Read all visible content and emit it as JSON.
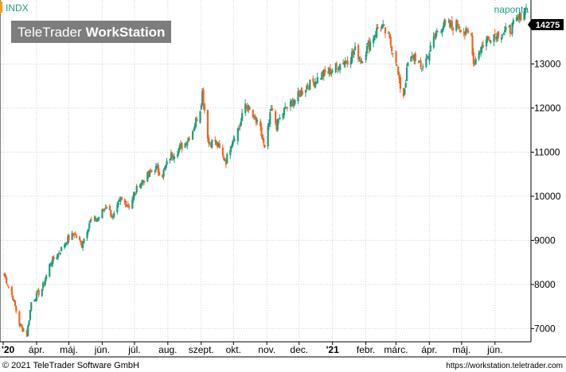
{
  "header": {
    "symbol": "INDX",
    "interval": "naponta",
    "watermark_prefix": "TeleTrader",
    "watermark_product": "WorkStation",
    "last_price_label": "14275"
  },
  "footer": {
    "copyright": "© 2021 TeleTrader Software GmbH",
    "url": "https://workstation.teletrader.com"
  },
  "colors": {
    "up": "#1a9e7d",
    "down": "#f0651e",
    "symbol_accent": "#f0a020",
    "interval_text": "#1a9e7d",
    "grid": "#cfcfcf",
    "axis": "#000000",
    "price_box_bg": "#000000",
    "price_box_text": "#ffffff"
  },
  "chart_data": {
    "type": "candlestick",
    "series_name": "INDX",
    "y_axis": {
      "position": "right",
      "ticks": [
        7000,
        8000,
        9000,
        10000,
        11000,
        12000,
        13000
      ],
      "ylim": [
        6700,
        14450
      ]
    },
    "x_axis": {
      "tick_labels": [
        "'20",
        "ápr.",
        "máj.",
        "jún.",
        "júl.",
        "aug.",
        "szept.",
        "okt.",
        "nov.",
        "dec.",
        "'21",
        "febr.",
        "márc.",
        "ápr.",
        "máj.",
        "jún."
      ],
      "tick_dates": [
        "2020-03-01",
        "2020-04-01",
        "2020-05-01",
        "2020-06-01",
        "2020-07-01",
        "2020-08-01",
        "2020-09-01",
        "2020-10-01",
        "2020-11-01",
        "2020-12-01",
        "2021-01-01",
        "2021-02-01",
        "2021-03-01",
        "2021-04-01",
        "2021-05-01",
        "2021-06-01"
      ],
      "bold_labels": [
        "'20",
        "'21"
      ],
      "range": [
        "2020-03-01",
        "2021-06-30"
      ]
    },
    "grid": true,
    "last_value": 14275,
    "price_path": [
      [
        "2020-03-02",
        8200
      ],
      [
        "2020-03-10",
        7700
      ],
      [
        "2020-03-16",
        7100
      ],
      [
        "2020-03-23",
        6850
      ],
      [
        "2020-03-27",
        7600
      ],
      [
        "2020-04-06",
        7900
      ],
      [
        "2020-04-14",
        8500
      ],
      [
        "2020-04-21",
        8700
      ],
      [
        "2020-04-29",
        9000
      ],
      [
        "2020-05-06",
        9150
      ],
      [
        "2020-05-13",
        8900
      ],
      [
        "2020-05-20",
        9400
      ],
      [
        "2020-05-28",
        9500
      ],
      [
        "2020-06-05",
        9800
      ],
      [
        "2020-06-11",
        9500
      ],
      [
        "2020-06-18",
        9900
      ],
      [
        "2020-06-26",
        9800
      ],
      [
        "2020-07-06",
        10300
      ],
      [
        "2020-07-13",
        10450
      ],
      [
        "2020-07-20",
        10650
      ],
      [
        "2020-07-27",
        10500
      ],
      [
        "2020-08-03",
        10900
      ],
      [
        "2020-08-10",
        11050
      ],
      [
        "2020-08-17",
        11200
      ],
      [
        "2020-08-24",
        11500
      ],
      [
        "2020-08-31",
        12000
      ],
      [
        "2020-09-02",
        12350
      ],
      [
        "2020-09-08",
        11200
      ],
      [
        "2020-09-14",
        11250
      ],
      [
        "2020-09-21",
        10900
      ],
      [
        "2020-09-24",
        10800
      ],
      [
        "2020-09-30",
        11300
      ],
      [
        "2020-10-07",
        11600
      ],
      [
        "2020-10-12",
        12100
      ],
      [
        "2020-10-19",
        11800
      ],
      [
        "2020-10-26",
        11500
      ],
      [
        "2020-10-30",
        11050
      ],
      [
        "2020-11-05",
        11950
      ],
      [
        "2020-11-10",
        11600
      ],
      [
        "2020-11-17",
        11950
      ],
      [
        "2020-11-24",
        12100
      ],
      [
        "2020-12-01",
        12300
      ],
      [
        "2020-12-08",
        12500
      ],
      [
        "2020-12-15",
        12600
      ],
      [
        "2020-12-22",
        12750
      ],
      [
        "2020-12-31",
        12850
      ],
      [
        "2021-01-08",
        13000
      ],
      [
        "2021-01-15",
        13100
      ],
      [
        "2021-01-22",
        13300
      ],
      [
        "2021-01-28",
        13100
      ],
      [
        "2021-02-05",
        13500
      ],
      [
        "2021-02-12",
        13800
      ],
      [
        "2021-02-16",
        13850
      ],
      [
        "2021-02-22",
        13600
      ],
      [
        "2021-03-01",
        13100
      ],
      [
        "2021-03-04",
        12550
      ],
      [
        "2021-03-08",
        12300
      ],
      [
        "2021-03-12",
        13000
      ],
      [
        "2021-03-18",
        13200
      ],
      [
        "2021-03-24",
        12900
      ],
      [
        "2021-03-31",
        13200
      ],
      [
        "2021-04-07",
        13700
      ],
      [
        "2021-04-14",
        13900
      ],
      [
        "2021-04-21",
        13850
      ],
      [
        "2021-04-28",
        13900
      ],
      [
        "2021-05-04",
        13700
      ],
      [
        "2021-05-10",
        13650
      ],
      [
        "2021-05-12",
        13000
      ],
      [
        "2021-05-17",
        13300
      ],
      [
        "2021-05-21",
        13450
      ],
      [
        "2021-05-28",
        13650
      ],
      [
        "2021-06-07",
        13700
      ],
      [
        "2021-06-14",
        13750
      ],
      [
        "2021-06-22",
        14000
      ],
      [
        "2021-06-30",
        14275
      ]
    ]
  }
}
